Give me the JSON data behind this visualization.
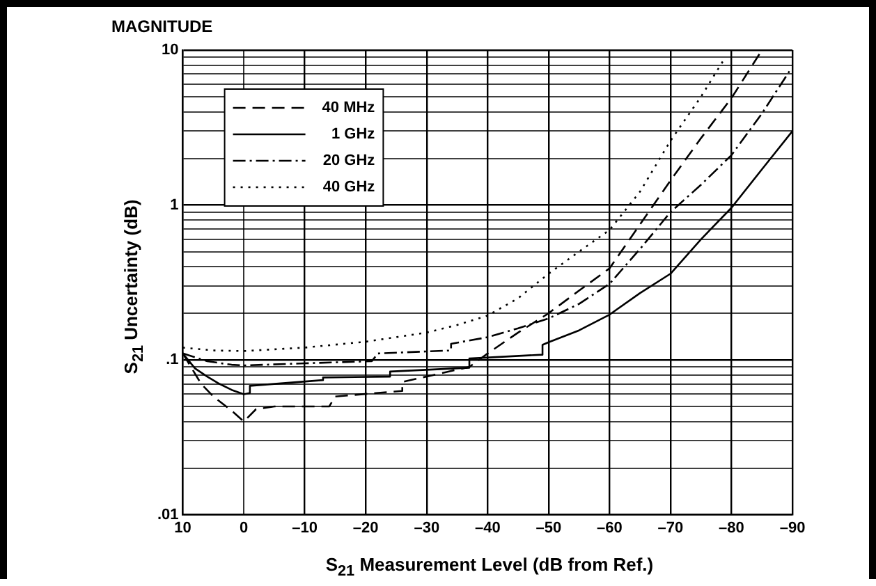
{
  "chart_data": {
    "type": "line",
    "title": "MAGNITUDE",
    "xlabel": "S$_{21}$ Measurement Level (dB from Ref.)",
    "ylabel": "S$_{21}$ Uncertainty (dB)",
    "xlim": [
      10,
      -90
    ],
    "xticks": [
      10,
      0,
      {
        "value": -10,
        "label": "–10"
      },
      {
        "value": -20,
        "label": "–20"
      },
      {
        "value": -30,
        "label": "–30"
      },
      {
        "value": -40,
        "label": "–40"
      },
      {
        "value": -50,
        "label": "–50"
      },
      {
        "value": -60,
        "label": "–60"
      },
      {
        "value": -70,
        "label": "–70"
      },
      {
        "value": -80,
        "label": "–80"
      },
      {
        "value": -90,
        "label": "–90"
      }
    ],
    "ylim": [
      0.01,
      10
    ],
    "log": true,
    "yticks": [
      {
        "value": 0.01,
        "label": ".01"
      },
      {
        "value": 0.02,
        "label": null
      },
      {
        "value": 0.03,
        "label": null
      },
      {
        "value": 0.04,
        "label": null
      },
      {
        "value": 0.05,
        "label": null
      },
      {
        "value": 0.06,
        "label": null
      },
      {
        "value": 0.07,
        "label": null
      },
      {
        "value": 0.08,
        "label": null
      },
      {
        "value": 0.09,
        "label": null
      },
      {
        "value": 0.1,
        "label": ".1"
      },
      {
        "value": 0.2,
        "label": null
      },
      {
        "value": 0.3,
        "label": null
      },
      {
        "value": 0.4,
        "label": null
      },
      {
        "value": 0.5,
        "label": null
      },
      {
        "value": 0.6,
        "label": null
      },
      {
        "value": 0.7,
        "label": null
      },
      {
        "value": 0.8,
        "label": null
      },
      {
        "value": 0.9,
        "label": null
      },
      1,
      {
        "value": 2,
        "label": null
      },
      {
        "value": 3,
        "label": null
      },
      {
        "value": 4,
        "label": null
      },
      {
        "value": 5,
        "label": null
      },
      {
        "value": 6,
        "label": null
      },
      {
        "value": 7,
        "label": null
      },
      {
        "value": 8,
        "label": null
      },
      {
        "value": 9,
        "label": null
      },
      10
    ],
    "grid": true,
    "legend": "top left",
    "marker": "none",
    "series": [
      {
        "name": "40 MHz",
        "color": "#000000",
        "line_style": "dashed",
        "x": [
          10,
          7,
          5,
          2,
          0,
          -2,
          -5,
          -14,
          -15,
          -26,
          -26,
          -37,
          -40,
          -45,
          -50,
          -55,
          -60,
          -65,
          -70,
          -75,
          -80,
          -85
        ],
        "values": [
          0.11,
          0.07,
          0.058,
          0.047,
          0.04,
          0.048,
          0.05,
          0.05,
          0.058,
          0.063,
          0.072,
          0.09,
          0.11,
          0.15,
          0.2,
          0.28,
          0.39,
          0.75,
          1.44,
          2.7,
          4.9,
          10
        ]
      },
      {
        "name": "1 GHz",
        "color": "#000000",
        "line_style": "solid",
        "x": [
          10,
          8,
          6,
          4,
          2,
          0,
          -1,
          -1,
          -13,
          -13,
          -24,
          -24,
          -37,
          -37,
          -49,
          -49,
          -50,
          -55,
          -60,
          -65,
          -70,
          -75,
          -80,
          -85,
          -90
        ],
        "values": [
          0.11,
          0.088,
          0.078,
          0.07,
          0.064,
          0.06,
          0.061,
          0.068,
          0.074,
          0.077,
          0.078,
          0.084,
          0.089,
          0.102,
          0.108,
          0.125,
          0.13,
          0.155,
          0.196,
          0.27,
          0.36,
          0.6,
          0.96,
          1.7,
          3.0
        ]
      },
      {
        "name": "20 GHz",
        "color": "#000000",
        "line_style": "dashdot",
        "x": [
          10,
          6,
          2,
          0,
          -10,
          -21,
          -22,
          -34,
          -34,
          -40,
          -45,
          -50,
          -55,
          -60,
          -65,
          -70,
          -75,
          -80,
          -85,
          -89.5
        ],
        "values": [
          0.11,
          0.098,
          0.093,
          0.092,
          0.095,
          0.098,
          0.11,
          0.115,
          0.127,
          0.14,
          0.16,
          0.185,
          0.23,
          0.31,
          0.52,
          0.9,
          1.35,
          2.1,
          3.9,
          7.3
        ]
      },
      {
        "name": "40 GHz",
        "color": "#000000",
        "line_style": "dotted",
        "x": [
          10,
          5,
          0,
          -10,
          -20,
          -30,
          -35,
          -40,
          -45,
          -50,
          -55,
          -60,
          -65,
          -70,
          -75,
          -79
        ],
        "values": [
          0.12,
          0.115,
          0.114,
          0.12,
          0.131,
          0.15,
          0.168,
          0.193,
          0.25,
          0.36,
          0.5,
          0.69,
          1.22,
          2.6,
          5,
          9
        ]
      }
    ]
  }
}
